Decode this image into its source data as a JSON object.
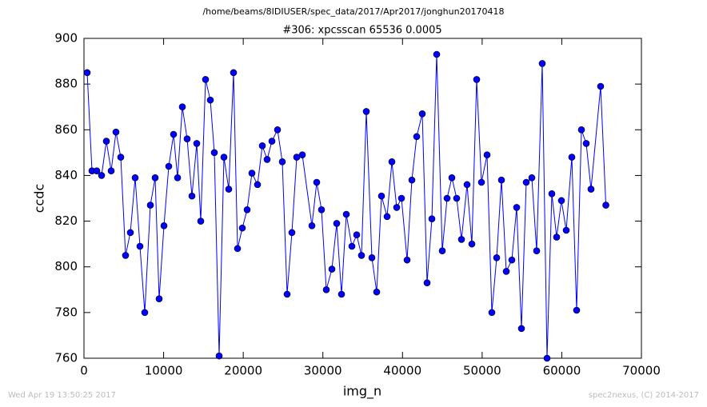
{
  "chart_data": {
    "type": "line",
    "suptitle": "/home/beams/8IDIUSER/spec_data/2017/Apr2017/jonghun20170418",
    "title": "#306: xpcsscan 65536 0.0005",
    "xlabel": "img_n",
    "ylabel": "ccdc",
    "footer_left": "Wed Apr 19 13:50:25 2017",
    "footer_right": "spec2nexus, (C) 2014-2017",
    "xlim": [
      0,
      70000
    ],
    "xticks": [
      0,
      10000,
      20000,
      30000,
      40000,
      50000,
      60000,
      70000
    ],
    "ylim": [
      760,
      900
    ],
    "yticks": [
      760,
      780,
      800,
      820,
      840,
      860,
      880,
      900
    ],
    "grid": false,
    "x": [
      402,
      1004,
      1607,
      2209,
      2812,
      3415,
      4017,
      4620,
      5222,
      5825,
      6427,
      7030,
      7633,
      8336,
      8938,
      9440,
      10043,
      10646,
      11248,
      11750,
      12353,
      12955,
      13558,
      14161,
      14663,
      15265,
      15868,
      16370,
      16973,
      17575,
      18178,
      18780,
      19283,
      19885,
      20488,
      21090,
      21793,
      22396,
      22998,
      23601,
      24304,
      24906,
      25509,
      26112,
      26714,
      27417,
      28623,
      29225,
      29828,
      30430,
      31133,
      31736,
      32338,
      32941,
      33644,
      34247,
      34849,
      35452,
      36155,
      36757,
      37360,
      38063,
      38666,
      39268,
      39871,
      40574,
      41176,
      41779,
      42482,
      43084,
      43687,
      44290,
      44993,
      45595,
      46198,
      46800,
      47403,
      48106,
      48709,
      49311,
      49914,
      50617,
      51219,
      51822,
      52424,
      53027,
      53730,
      54333,
      54935,
      55538,
      56241,
      56843,
      57546,
      58149,
      58751,
      59354,
      59956,
      60559,
      61262,
      61864,
      62467,
      63069,
      63672,
      64877,
      65536
    ],
    "series": [
      {
        "color": "#0000ff",
        "values": [
          885,
          842,
          842,
          840,
          855,
          842,
          859,
          848,
          805,
          815,
          839,
          809,
          780,
          827,
          839,
          786,
          818,
          844,
          858,
          839,
          870,
          856,
          831,
          854,
          820,
          882,
          873,
          850,
          761,
          848,
          834,
          885,
          808,
          817,
          825,
          841,
          836,
          853,
          847,
          855,
          860,
          846,
          788,
          815,
          848,
          849,
          818,
          837,
          825,
          790,
          799,
          819,
          788,
          823,
          809,
          814,
          805,
          868,
          804,
          789,
          831,
          822,
          846,
          826,
          830,
          803,
          838,
          857,
          867,
          793,
          821,
          893,
          807,
          830,
          839,
          830,
          812,
          836,
          810,
          882,
          837,
          849,
          780,
          804,
          838,
          798,
          803,
          826,
          773,
          837,
          839,
          807,
          889,
          760,
          832,
          813,
          829,
          816,
          848,
          781,
          860,
          854,
          834,
          879,
          827
        ]
      }
    ]
  }
}
